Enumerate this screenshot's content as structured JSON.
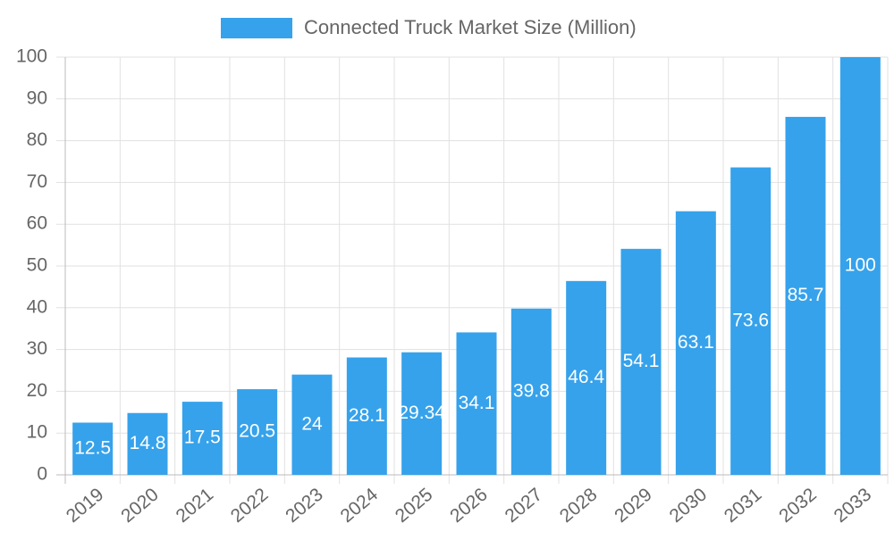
{
  "chart_data": {
    "type": "bar",
    "legend": "Connected Truck Market Size (Million)",
    "color": "#36a2eb",
    "categories": [
      "2019",
      "2020",
      "2021",
      "2022",
      "2023",
      "2024",
      "2025",
      "2026",
      "2027",
      "2028",
      "2029",
      "2030",
      "2031",
      "2032",
      "2033"
    ],
    "values": [
      12.5,
      14.8,
      17.5,
      20.5,
      24,
      28.1,
      29.34,
      34.1,
      39.8,
      46.4,
      54.1,
      63.1,
      73.6,
      85.7,
      100
    ],
    "ylim": [
      0,
      100
    ],
    "yticks": [
      0,
      10,
      20,
      30,
      40,
      50,
      60,
      70,
      80,
      90,
      100
    ],
    "grid": true
  }
}
